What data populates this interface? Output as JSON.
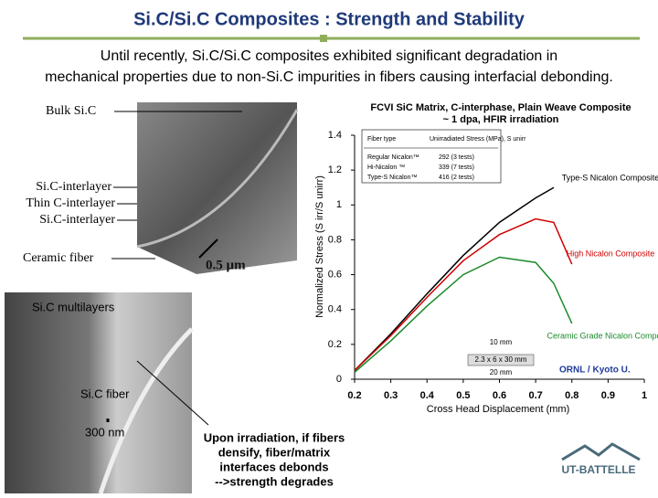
{
  "title": "Si.C/Si.C Composites : Strength and Stability",
  "intro": [
    "Until recently, Si.C/Si.C composites exhibited significant degradation in",
    "mechanical properties due to non-Si.C impurities in fibers causing interfacial debonding."
  ],
  "micrograph_top": {
    "labels": [
      "Bulk Si.C",
      "Si.C-interlayer",
      "Thin C-interlayer",
      "Si.C-interlayer",
      "Ceramic fiber"
    ],
    "scale": "0.5 µm"
  },
  "micrograph_bottom": {
    "labels": [
      "Si.C multilayers",
      "Si.C fiber"
    ],
    "scale": "300 nm"
  },
  "note": [
    "Upon irradiation, if fibers",
    "densify, fiber/matrix",
    "interfaces debonds",
    "-->strength degrades"
  ],
  "logo": "UT-BATTELLE",
  "chart_data": {
    "type": "line",
    "title": "FCVI SiC Matrix, C-interphase, Plain Weave Composite",
    "subtitle": "~ 1 dpa, HFIR irradiation",
    "x_label": "Cross Head Displacement (mm)",
    "y_label": "Normalized Stress (S irr/S unirr)",
    "xlim": [
      0.2,
      1
    ],
    "xticks": [
      0.2,
      0.3,
      0.4,
      0.5,
      0.6,
      0.7,
      0.8,
      0.9,
      1
    ],
    "ylim": [
      0,
      1.4
    ],
    "yticks": [
      0,
      0.2,
      0.4,
      0.6,
      0.8,
      1,
      1.2,
      1.4
    ],
    "x": [
      0.2,
      0.3,
      0.4,
      0.5,
      0.6,
      0.7,
      0.75,
      0.8
    ],
    "series": [
      {
        "name": "Type-S Nicalon Composite",
        "color": "#000000",
        "values": [
          0.05,
          0.26,
          0.49,
          0.71,
          0.9,
          1.04,
          1.1,
          null
        ]
      },
      {
        "name": "High Nicalon Composite",
        "color": "#d00000",
        "values": [
          0.05,
          0.25,
          0.47,
          0.68,
          0.83,
          0.92,
          0.9,
          0.66
        ]
      },
      {
        "name": "Ceramic Grade Nicalon Composite",
        "color": "#1a8a2a",
        "values": [
          0.04,
          0.22,
          0.42,
          0.6,
          0.7,
          0.67,
          0.55,
          0.32
        ]
      }
    ],
    "table": {
      "header": [
        "Fiber type",
        "Unirradiated Stress (MPa), S unirr"
      ],
      "rows": [
        [
          "Regular Nicalon™",
          "292 (3 tests)"
        ],
        [
          "Hi-Nicalon ™",
          "339 (7 tests)"
        ],
        [
          "Type-S Nicalon™",
          "416 (2 tests)"
        ]
      ]
    },
    "annotations": [
      "ORNL / Kyoto U.",
      "10 mm",
      "2.3 x 6 x 30 mm",
      "20 mm"
    ]
  }
}
